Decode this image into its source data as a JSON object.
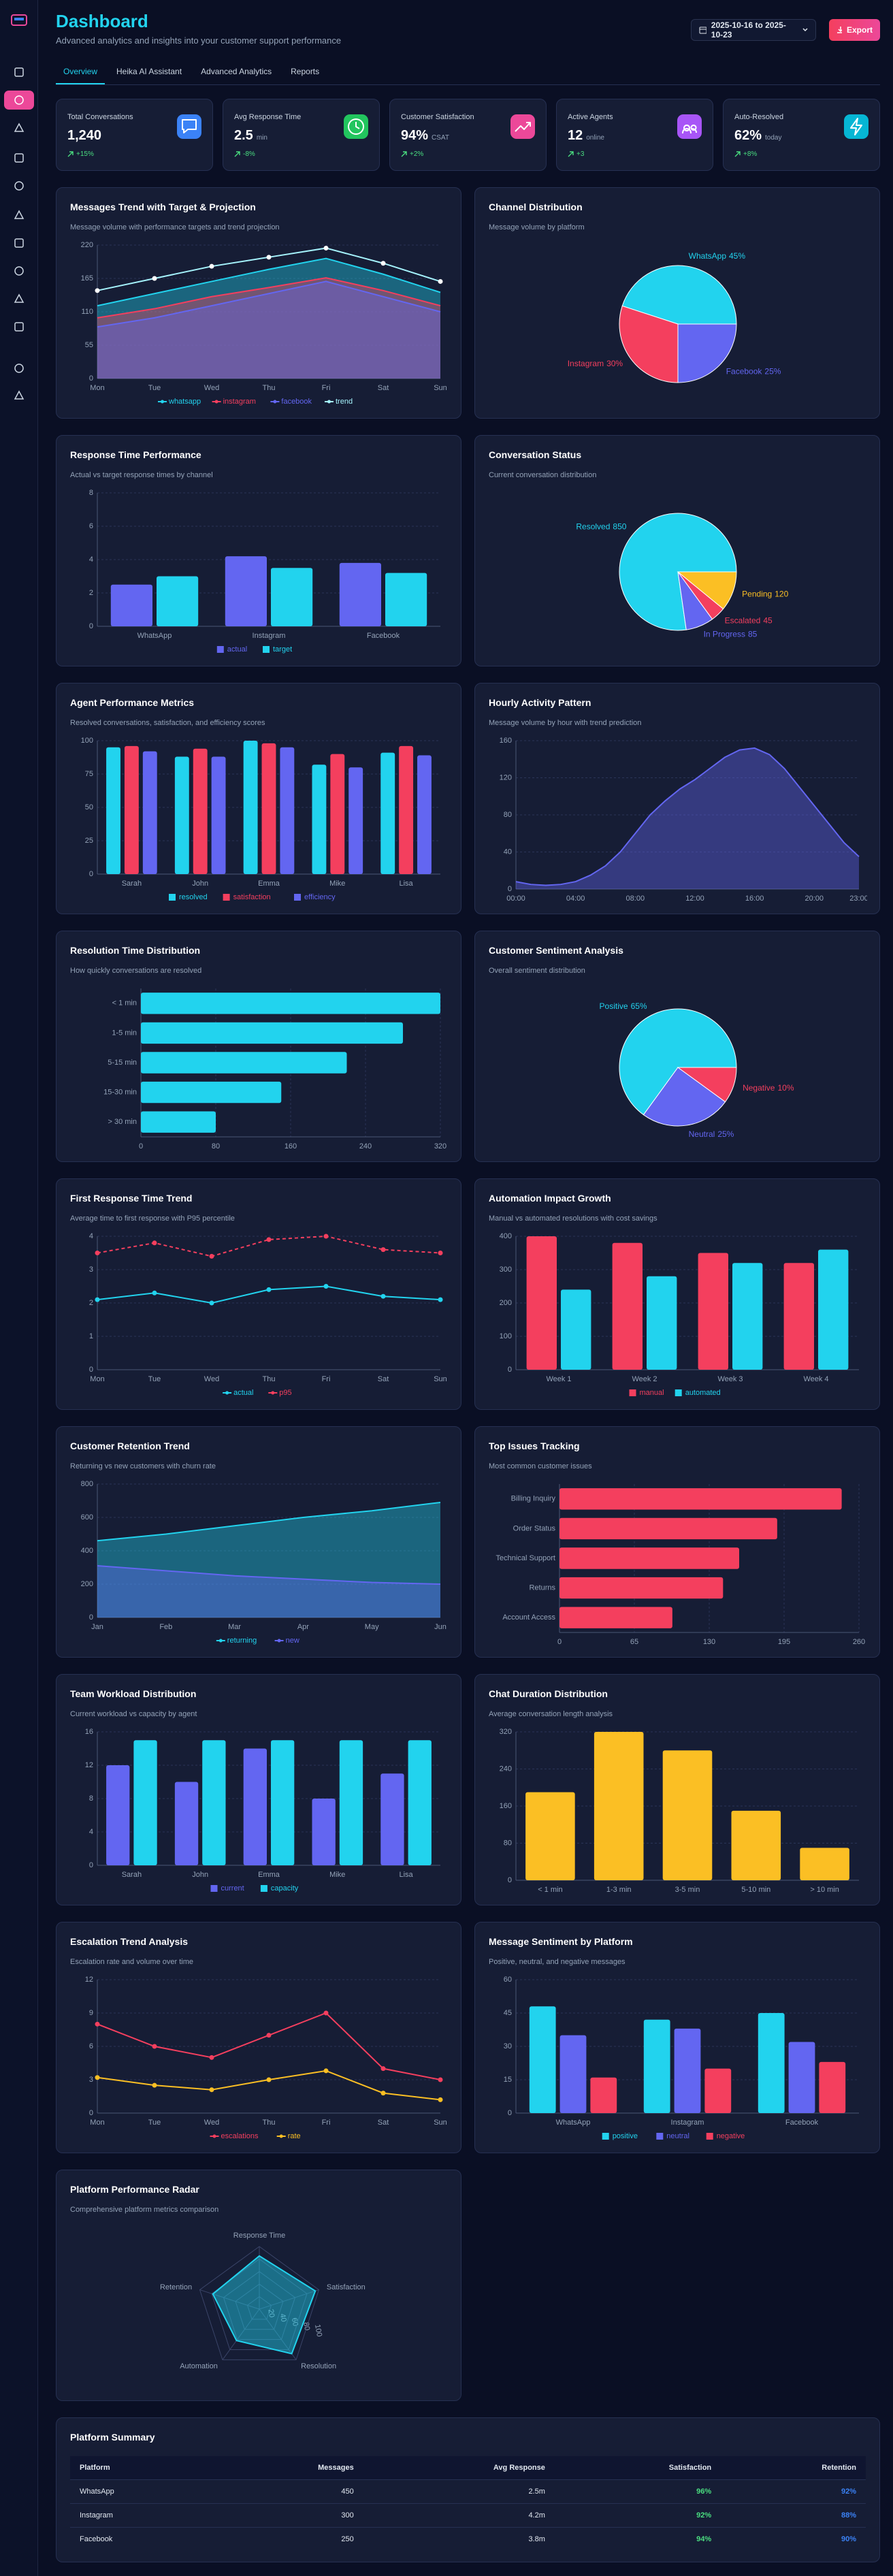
{
  "header": {
    "title": "Dashboard",
    "subtitle": "Advanced analytics and insights into your customer support performance",
    "date_range": "2025-10-16 to 2025-10-23",
    "export": "Export"
  },
  "tabs": [
    "Overview",
    "Heika AI Assistant",
    "Advanced Analytics",
    "Reports"
  ],
  "kpis": [
    {
      "label": "Total Conversations",
      "value": "1,240",
      "change": "+15%"
    },
    {
      "label": "Avg Response Time",
      "value": "2.5",
      "unit": "min",
      "change": "-8%"
    },
    {
      "label": "Customer Satisfaction",
      "value": "94%",
      "unit": "CSAT",
      "change": "+2%"
    },
    {
      "label": "Active Agents",
      "value": "12",
      "unit": "online",
      "change": "+3"
    },
    {
      "label": "Auto-Resolved",
      "value": "62%",
      "unit": "today",
      "change": "+8%"
    }
  ],
  "chart_data": [
    {
      "type": "area",
      "title": "Messages Trend with Target & Projection",
      "subtitle": "Message volume with performance targets and trend projection",
      "categories": [
        "Mon",
        "Tue",
        "Wed",
        "Thu",
        "Fri",
        "Sat",
        "Sun"
      ],
      "series": [
        {
          "name": "whatsapp",
          "color": "#22d3ee",
          "values": [
            120,
            140,
            160,
            180,
            198,
            172,
            142
          ]
        },
        {
          "name": "instagram",
          "color": "#f43f5e",
          "values": [
            100,
            115,
            135,
            150,
            166,
            145,
            120
          ]
        },
        {
          "name": "facebook",
          "color": "#6366f1",
          "values": [
            85,
            100,
            120,
            140,
            160,
            135,
            110
          ]
        },
        {
          "name": "trend",
          "type": "line",
          "marker_color": "#ffffff",
          "color": "#a5f3fc",
          "values": [
            145,
            165,
            185,
            200,
            215,
            190,
            160
          ]
        }
      ],
      "ylim": [
        0,
        220
      ],
      "yticks": [
        0,
        55,
        110,
        165,
        220
      ],
      "grid": true
    },
    {
      "type": "pie",
      "title": "Channel Distribution",
      "subtitle": "Message volume by platform",
      "categories": [
        "WhatsApp",
        "Instagram",
        "Facebook"
      ],
      "values": [
        45,
        30,
        25
      ],
      "value_labels": [
        "45%",
        "30%",
        "25%"
      ],
      "colors": [
        "#22d3ee",
        "#f43f5e",
        "#6366f1"
      ]
    },
    {
      "type": "bar",
      "title": "Response Time Performance",
      "subtitle": "Actual vs target response times by channel",
      "categories": [
        "WhatsApp",
        "Instagram",
        "Facebook"
      ],
      "series": [
        {
          "name": "actual",
          "color": "#6366f1",
          "values": [
            2.5,
            4.2,
            3.8
          ]
        },
        {
          "name": "target",
          "color": "#22d3ee",
          "values": [
            3,
            3.5,
            3.2
          ]
        }
      ],
      "ylim": [
        0,
        8
      ],
      "yticks": [
        0,
        2,
        4,
        6,
        8
      ],
      "grid": true
    },
    {
      "type": "pie",
      "title": "Conversation Status",
      "subtitle": "Current conversation distribution",
      "categories": [
        "Resolved",
        "In Progress",
        "Escalated",
        "Pending"
      ],
      "values": [
        850,
        85,
        45,
        120
      ],
      "colors": [
        "#22d3ee",
        "#6366f1",
        "#f43f5e",
        "#fbbf24"
      ]
    },
    {
      "type": "bar",
      "title": "Agent Performance Metrics",
      "subtitle": "Resolved conversations, satisfaction, and efficiency scores",
      "categories": [
        "Sarah",
        "John",
        "Emma",
        "Mike",
        "Lisa"
      ],
      "series": [
        {
          "name": "resolved",
          "color": "#22d3ee",
          "values": [
            95,
            88,
            100,
            82,
            91
          ]
        },
        {
          "name": "satisfaction",
          "color": "#f43f5e",
          "values": [
            96,
            94,
            98,
            90,
            96
          ]
        },
        {
          "name": "efficiency",
          "color": "#6366f1",
          "values": [
            92,
            88,
            95,
            80,
            89
          ]
        }
      ],
      "ylim": [
        0,
        100
      ],
      "yticks": [
        0,
        25,
        50,
        75,
        100
      ],
      "grid": true
    },
    {
      "type": "area",
      "title": "Hourly Activity Pattern",
      "subtitle": "Message volume by hour with trend prediction",
      "categories": [
        "00:00",
        null,
        null,
        null,
        "04:00",
        null,
        null,
        null,
        "08:00",
        null,
        null,
        null,
        "12:00",
        null,
        null,
        null,
        "16:00",
        null,
        null,
        null,
        "20:00",
        null,
        null,
        "23:00"
      ],
      "values": [
        8,
        5,
        4,
        5,
        8,
        15,
        25,
        40,
        60,
        80,
        95,
        108,
        118,
        130,
        142,
        150,
        152,
        145,
        130,
        110,
        90,
        70,
        50,
        35
      ],
      "color": "#6366f1",
      "ylim": [
        0,
        160
      ],
      "yticks": [
        0,
        40,
        80,
        120,
        160
      ],
      "grid": true
    },
    {
      "type": "bar",
      "horizontal": true,
      "title": "Resolution Time Distribution",
      "subtitle": "How quickly conversations are resolved",
      "categories": [
        "< 1 min",
        "1-5 min",
        "5-15 min",
        "15-30 min",
        "> 30 min"
      ],
      "values": [
        320,
        280,
        220,
        150,
        80
      ],
      "color": "#22d3ee",
      "xlim": [
        0,
        320
      ],
      "xticks": [
        0,
        80,
        160,
        240,
        320
      ],
      "grid": true
    },
    {
      "type": "pie",
      "title": "Customer Sentiment Analysis",
      "subtitle": "Overall sentiment distribution",
      "categories": [
        "Positive",
        "Neutral",
        "Negative"
      ],
      "values": [
        65,
        25,
        10
      ],
      "value_labels": [
        "65%",
        "25%",
        "10%"
      ],
      "colors": [
        "#22d3ee",
        "#6366f1",
        "#f43f5e"
      ]
    },
    {
      "type": "line",
      "title": "First Response Time Trend",
      "subtitle": "Average time to first response with P95 percentile",
      "categories": [
        "Mon",
        "Tue",
        "Wed",
        "Thu",
        "Fri",
        "Sat",
        "Sun"
      ],
      "series": [
        {
          "name": "actual",
          "color": "#22d3ee",
          "values": [
            2.1,
            2.3,
            2.0,
            2.4,
            2.5,
            2.2,
            2.1
          ]
        },
        {
          "name": "p95",
          "color": "#f43f5e",
          "dash": true,
          "values": [
            3.5,
            3.8,
            3.4,
            3.9,
            4.0,
            3.6,
            3.5
          ]
        }
      ],
      "ylim": [
        0,
        4
      ],
      "yticks": [
        0,
        1,
        2,
        3,
        4
      ],
      "grid": true
    },
    {
      "type": "bar",
      "title": "Automation Impact Growth",
      "subtitle": "Manual vs automated resolutions with cost savings",
      "categories": [
        "Week 1",
        "Week 2",
        "Week 3",
        "Week 4"
      ],
      "series": [
        {
          "name": "manual",
          "color": "#f43f5e",
          "values": [
            400,
            380,
            350,
            320
          ]
        },
        {
          "name": "automated",
          "color": "#22d3ee",
          "values": [
            240,
            280,
            320,
            360
          ]
        }
      ],
      "ylim": [
        0,
        400
      ],
      "yticks": [
        0,
        100,
        200,
        300,
        400
      ],
      "grid": true
    },
    {
      "type": "area",
      "title": "Customer Retention Trend",
      "subtitle": "Returning vs new customers with churn rate",
      "categories": [
        "Jan",
        "Feb",
        "Mar",
        "Apr",
        "May",
        "Jun"
      ],
      "series": [
        {
          "name": "returning",
          "color": "#22d3ee",
          "values": [
            460,
            500,
            550,
            600,
            640,
            690
          ]
        },
        {
          "name": "new",
          "color": "#6366f1",
          "values": [
            310,
            280,
            250,
            230,
            210,
            200
          ]
        }
      ],
      "ylim": [
        0,
        800
      ],
      "yticks": [
        0,
        200,
        400,
        600,
        800
      ],
      "grid": true
    },
    {
      "type": "bar",
      "horizontal": true,
      "title": "Top Issues Tracking",
      "subtitle": "Most common customer issues",
      "categories": [
        "Billing Inquiry",
        "Order Status",
        "Technical Support",
        "Returns",
        "Account Access"
      ],
      "values": [
        245,
        189,
        156,
        142,
        98
      ],
      "color": "#f43f5e",
      "xlim": [
        0,
        260
      ],
      "xticks": [
        0,
        65,
        130,
        195,
        260
      ],
      "grid": true
    },
    {
      "type": "bar",
      "title": "Team Workload Distribution",
      "subtitle": "Current workload vs capacity by agent",
      "categories": [
        "Sarah",
        "John",
        "Emma",
        "Mike",
        "Lisa"
      ],
      "series": [
        {
          "name": "current",
          "color": "#6366f1",
          "values": [
            12,
            10,
            14,
            8,
            11
          ]
        },
        {
          "name": "capacity",
          "color": "#22d3ee",
          "values": [
            15,
            15,
            15,
            15,
            15
          ]
        }
      ],
      "ylim": [
        0,
        16
      ],
      "yticks": [
        0,
        4,
        8,
        12,
        16
      ],
      "grid": true
    },
    {
      "type": "bar",
      "title": "Chat Duration Distribution",
      "subtitle": "Average conversation length analysis",
      "categories": [
        "< 1 min",
        "1-3 min",
        "3-5 min",
        "5-10 min",
        "> 10 min"
      ],
      "values": [
        190,
        320,
        280,
        150,
        70
      ],
      "color": "#fbbf24",
      "ylim": [
        0,
        320
      ],
      "yticks": [
        0,
        80,
        160,
        240,
        320
      ],
      "grid": true
    },
    {
      "type": "line",
      "title": "Escalation Trend Analysis",
      "subtitle": "Escalation rate and volume over time",
      "categories": [
        "Mon",
        "Tue",
        "Wed",
        "Thu",
        "Fri",
        "Sat",
        "Sun"
      ],
      "series": [
        {
          "name": "escalations",
          "color": "#f43f5e",
          "values": [
            8,
            6,
            5,
            7,
            9,
            4,
            3
          ]
        },
        {
          "name": "rate",
          "color": "#fbbf24",
          "values": [
            3.2,
            2.5,
            2.1,
            3.0,
            3.8,
            1.8,
            1.2
          ]
        }
      ],
      "ylim": [
        0,
        12
      ],
      "yticks": [
        0,
        3,
        6,
        9,
        12
      ],
      "grid": true
    },
    {
      "type": "bar",
      "title": "Message Sentiment by Platform",
      "subtitle": "Positive, neutral, and negative messages",
      "categories": [
        "WhatsApp",
        "Instagram",
        "Facebook"
      ],
      "series": [
        {
          "name": "positive",
          "color": "#22d3ee",
          "values": [
            48,
            42,
            45
          ]
        },
        {
          "name": "neutral",
          "color": "#6366f1",
          "values": [
            35,
            38,
            32
          ]
        },
        {
          "name": "negative",
          "color": "#f43f5e",
          "values": [
            16,
            20,
            23
          ]
        }
      ],
      "ylim": [
        0,
        60
      ],
      "yticks": [
        0,
        15,
        30,
        45,
        60
      ],
      "grid": true
    },
    {
      "type": "radar",
      "title": "Platform Performance Radar",
      "subtitle": "Comprehensive platform metrics comparison",
      "categories": [
        "Response Time",
        "Satisfaction",
        "Resolution",
        "Automation",
        "Retention"
      ],
      "values": [
        85,
        94,
        88,
        62,
        78
      ],
      "color": "#22d3ee",
      "rlim": [
        0,
        100
      ],
      "rticks": [
        20,
        40,
        60,
        80,
        100
      ]
    }
  ],
  "table": {
    "title": "Platform Summary",
    "columns": [
      "Platform",
      "Messages",
      "Avg Response",
      "Satisfaction",
      "Retention"
    ],
    "rows": [
      [
        "WhatsApp",
        "450",
        "2.5m",
        "96%",
        "92%"
      ],
      [
        "Instagram",
        "300",
        "4.2m",
        "92%",
        "88%"
      ],
      [
        "Facebook",
        "250",
        "3.8m",
        "94%",
        "90%"
      ]
    ]
  }
}
